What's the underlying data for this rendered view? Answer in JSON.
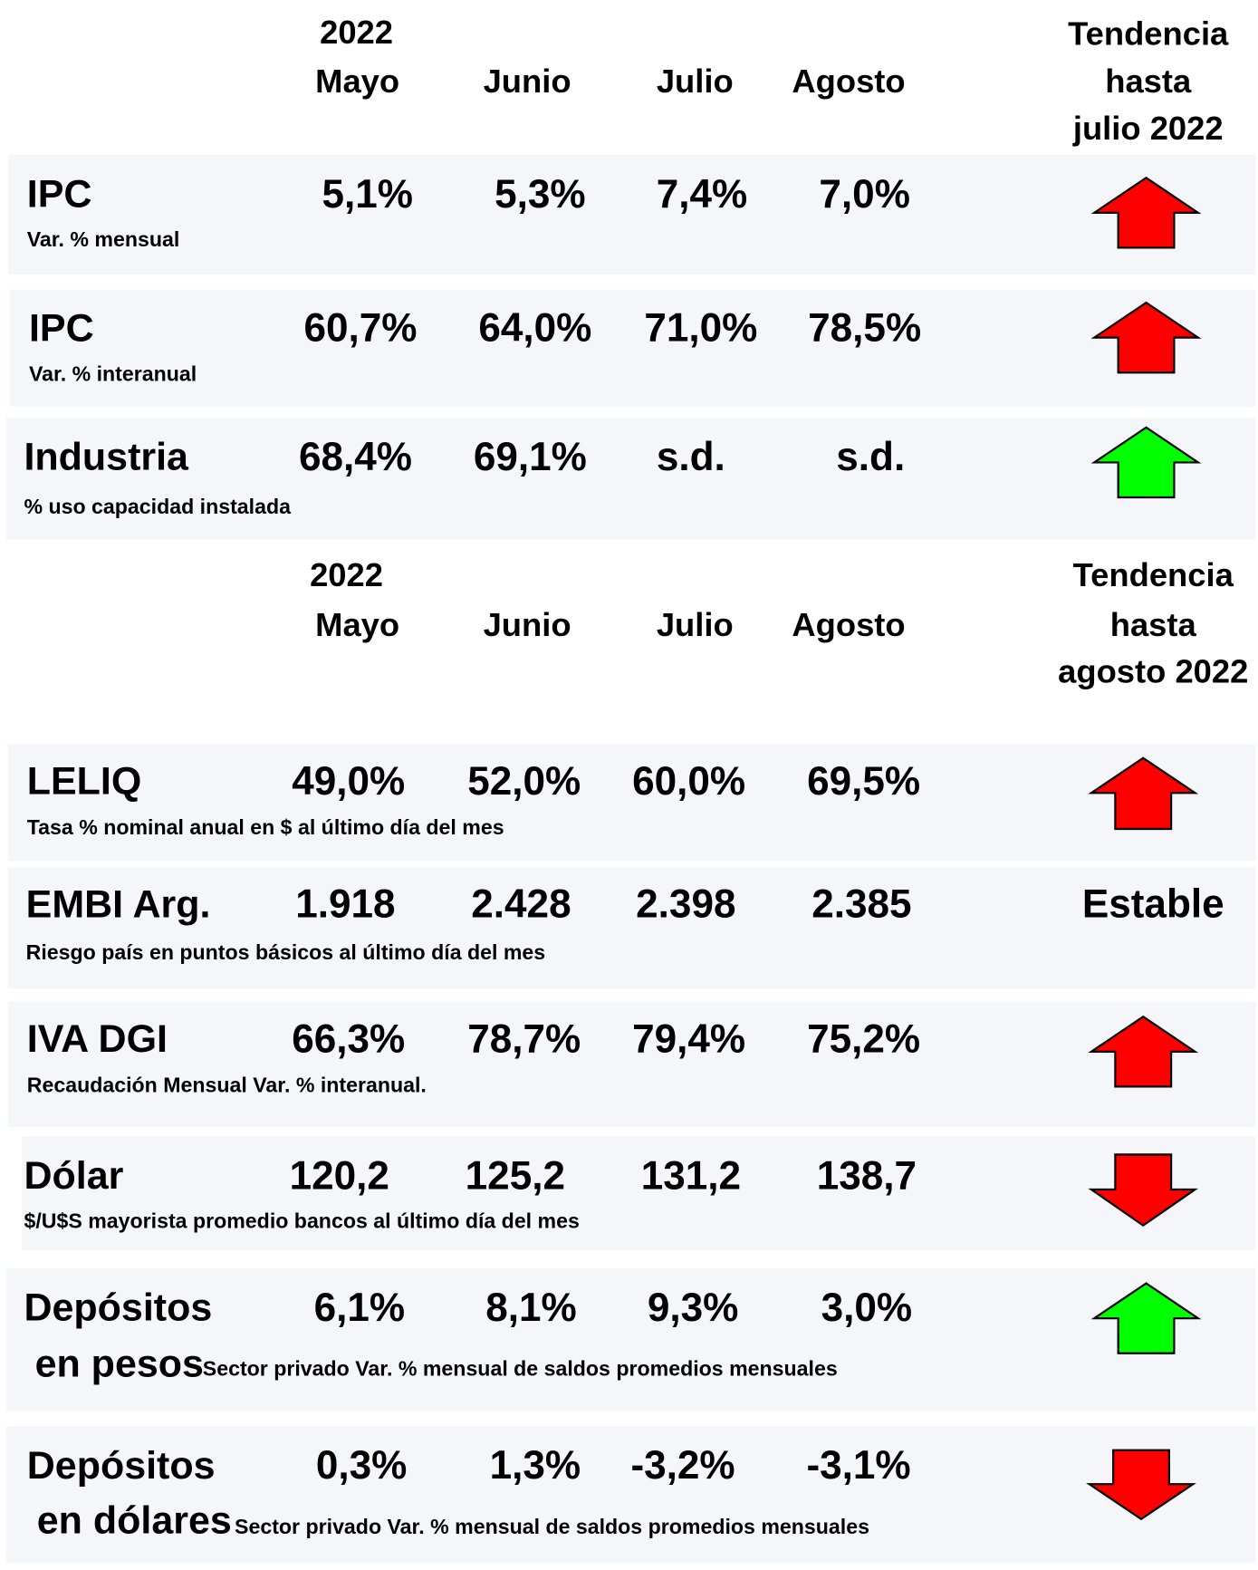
{
  "sections": [
    {
      "year": "2022",
      "months": [
        "Mayo",
        "Junio",
        "Julio",
        "Agosto"
      ],
      "trend_heading": [
        "Tendencia",
        "hasta",
        "julio 2022"
      ],
      "rows": [
        {
          "label": "IPC",
          "sublabel": "Var. % mensual",
          "values": [
            "5,1%",
            "5,3%",
            "7,4%",
            "7,0%"
          ]
        },
        {
          "label": "IPC",
          "sublabel": "Var. % interanual",
          "values": [
            "60,7%",
            "64,0%",
            "71,0%",
            "78,5%"
          ]
        },
        {
          "label": "Industria",
          "sublabel": "% uso capacidad instalada",
          "values": [
            "68,4%",
            "69,1%",
            "s.d.",
            "s.d."
          ]
        }
      ]
    },
    {
      "year": "2022",
      "months": [
        "Mayo",
        "Junio",
        "Julio",
        "Agosto"
      ],
      "trend_heading": [
        "Tendencia",
        "hasta",
        "agosto 2022"
      ],
      "rows": [
        {
          "label": "LELIQ",
          "sublabel": "Tasa % nominal anual en $ al último día del mes",
          "values": [
            "49,0%",
            "52,0%",
            "60,0%",
            "69,5%"
          ]
        },
        {
          "label": "EMBI Arg.",
          "sublabel": "Riesgo país en puntos básicos al último día del mes",
          "values": [
            "1.918",
            "2.428",
            "2.398",
            "2.385"
          ],
          "trend": "Estable"
        },
        {
          "label": "IVA DGI",
          "sublabel": "Recaudación Mensual Var. % interanual.",
          "values": [
            "66,3%",
            "78,7%",
            "79,4%",
            "75,2%"
          ]
        },
        {
          "label": "Dólar",
          "sublabel": "$/U$S mayorista promedio bancos al último día del mes",
          "values": [
            "120,2",
            "125,2",
            "131,2",
            "138,7"
          ]
        },
        {
          "label": "Depósitos",
          "label2": "en pesos",
          "sublabel": "Sector privado Var. % mensual de saldos promedios mensuales",
          "values": [
            "6,1%",
            "8,1%",
            "9,3%",
            "3,0%"
          ]
        },
        {
          "label": "Depósitos",
          "label2": "en dólares",
          "sublabel": "Sector privado Var. % mensual de saldos promedios mensuales",
          "values": [
            "0,3%",
            "1,3%",
            "-3,2%",
            "-3,1%"
          ]
        }
      ]
    }
  ]
}
